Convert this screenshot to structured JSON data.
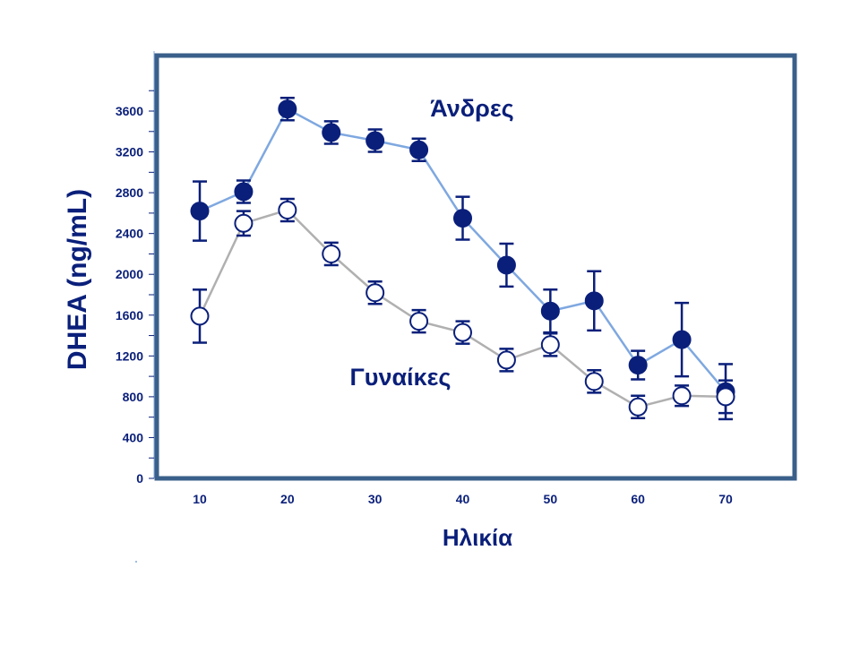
{
  "chart_data": {
    "type": "line",
    "title": "",
    "xlabel": "Ηλικία",
    "ylabel": "DHEA (ng/mL)",
    "xlim": [
      5,
      75
    ],
    "ylim": [
      0,
      4100
    ],
    "xticks": [
      10,
      20,
      30,
      40,
      50,
      60,
      70
    ],
    "yticks": [
      0,
      400,
      800,
      1200,
      1600,
      2000,
      2400,
      2800,
      3200,
      3600
    ],
    "grid": false,
    "legend": "inline labels",
    "series": [
      {
        "name": "Άνδρες",
        "marker": "filled-circle",
        "line_color": "#7FA8E0",
        "marker_color": "#0A1F7A",
        "x": [
          10,
          15,
          20,
          25,
          30,
          35,
          40,
          45,
          50,
          55,
          60,
          65,
          70
        ],
        "y": [
          2620,
          2810,
          3620,
          3390,
          3310,
          3220,
          2550,
          2090,
          1640,
          1740,
          1110,
          1360,
          850
        ],
        "err": [
          290,
          110,
          110,
          110,
          110,
          110,
          210,
          210,
          210,
          290,
          140,
          360,
          270
        ]
      },
      {
        "name": "Γυναίκες",
        "marker": "open-circle",
        "line_color": "#B0B0B0",
        "marker_color": "#0A1F7A",
        "x": [
          10,
          15,
          20,
          25,
          30,
          35,
          40,
          45,
          50,
          55,
          60,
          65,
          70
        ],
        "y": [
          1590,
          2500,
          2630,
          2200,
          1820,
          1540,
          1430,
          1160,
          1310,
          950,
          700,
          810,
          800
        ],
        "err": [
          260,
          120,
          110,
          110,
          110,
          110,
          110,
          110,
          110,
          110,
          110,
          100,
          160
        ]
      }
    ]
  },
  "colors": {
    "axis_text": "#0A1F7A",
    "frame": "#3A5F8A"
  }
}
